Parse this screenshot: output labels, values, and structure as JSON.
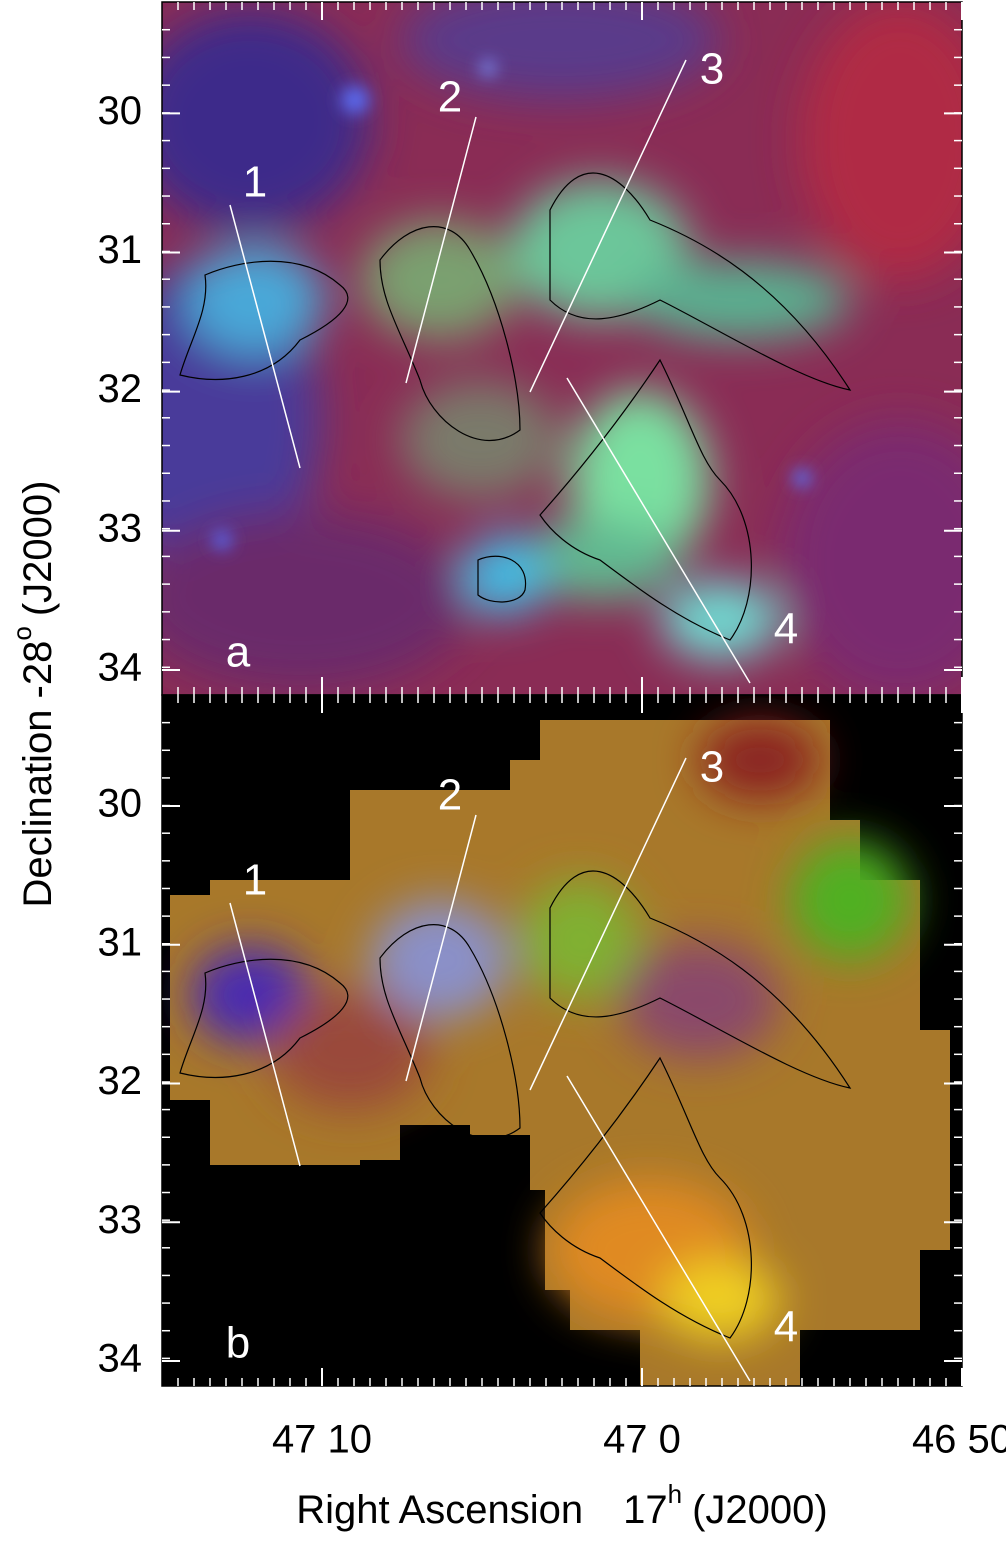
{
  "chart_data": [
    {
      "type": "image",
      "panel_label": "a",
      "line_labels": [
        "1",
        "2",
        "3",
        "4"
      ],
      "xlim": [
        2835,
        2810
      ],
      "xticks": [
        2830,
        2820,
        2810
      ],
      "ylim": [
        34.18,
        29.2
      ],
      "yticks": [
        30,
        31,
        32,
        33,
        34
      ]
    },
    {
      "type": "image",
      "panel_label": "b",
      "line_labels": [
        "1",
        "2",
        "3",
        "4"
      ],
      "xlim": [
        2835,
        2810
      ],
      "xticks": [
        {
          "value": 2830,
          "label": "47 10"
        },
        {
          "value": 2820,
          "label": "47 0"
        },
        {
          "value": 2810,
          "label": "46 50"
        }
      ],
      "ylim": [
        34.18,
        29.2
      ],
      "yticks": [
        30,
        31,
        32,
        33,
        34
      ],
      "xlabel": [
        "Right Ascension",
        "17",
        "h",
        "(J2000)"
      ],
      "ylabel": [
        "Declination  -28",
        "o",
        "(J2000)"
      ]
    }
  ]
}
